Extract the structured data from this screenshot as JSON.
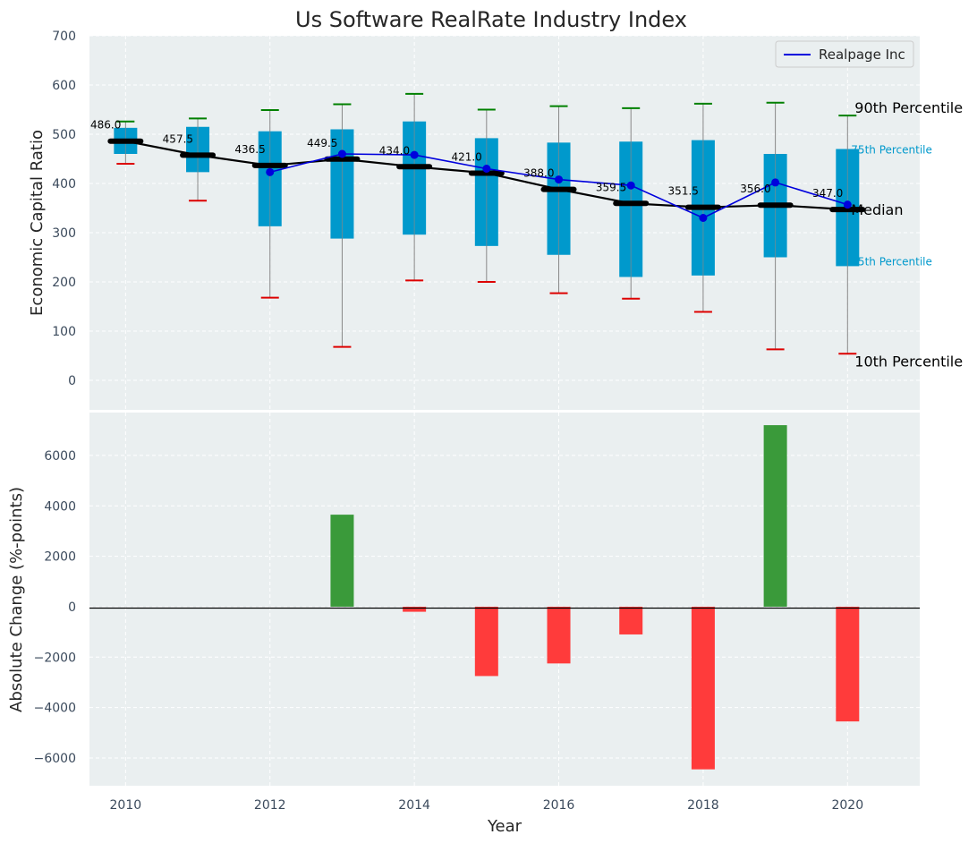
{
  "chart_data": [
    {
      "type": "box",
      "title": "Us Software RealRate Industry Index",
      "ylabel": "Economic Capital Ratio",
      "ylim": [
        -60,
        700
      ],
      "yticks": [
        0,
        100,
        200,
        300,
        400,
        500,
        600,
        700
      ],
      "grid": true,
      "legend_position": "top-right",
      "x": [
        2010,
        2011,
        2012,
        2013,
        2014,
        2015,
        2016,
        2017,
        2018,
        2019,
        2020
      ],
      "p10": [
        440,
        365,
        168,
        68,
        203,
        200,
        177,
        166,
        139,
        63,
        54
      ],
      "p25": [
        460,
        423,
        313,
        288,
        296,
        273,
        255,
        210,
        213,
        250,
        232
      ],
      "median": [
        486.0,
        457.5,
        436.5,
        449.5,
        434.0,
        421.0,
        388.0,
        359.5,
        351.5,
        356.0,
        347.0
      ],
      "median_labels": [
        "486.0",
        "457.5",
        "436.5",
        "449.5",
        "434.0",
        "421.0",
        "388.0",
        "359.5",
        "351.5",
        "356.0",
        "347.0"
      ],
      "p75": [
        513,
        515,
        506,
        510,
        526,
        492,
        483,
        485,
        488,
        460,
        470
      ],
      "p90": [
        526,
        532,
        549,
        561,
        582,
        550,
        557,
        553,
        562,
        564,
        538
      ],
      "series": [
        {
          "name": "Realpage Inc",
          "values": [
            null,
            null,
            423,
            460,
            458,
            430,
            408,
            396,
            330,
            402,
            357
          ],
          "color": "#0000dd"
        }
      ],
      "annotations": {
        "p90": "90th Percentile",
        "p75": "75th Percentile",
        "median": "Median",
        "p25": "25th Percentile",
        "p10": "10th Percentile"
      },
      "colors": {
        "box": "#0099cc",
        "median": "#000000",
        "p90_cap": "#008000",
        "p10_cap": "#dd0000",
        "whisker": "#888888"
      }
    },
    {
      "type": "bar",
      "ylabel": "Absolute Change (%-points)",
      "xlabel": "Year",
      "ylim": [
        -7100,
        7700
      ],
      "yticks": [
        -6000,
        -4000,
        -2000,
        0,
        2000,
        4000,
        6000
      ],
      "ytick_labels": [
        "−6000",
        "−4000",
        "−2000",
        "0",
        "2000",
        "4000",
        "6000"
      ],
      "xlim": [
        2009.5,
        2021
      ],
      "xticks": [
        2010,
        2012,
        2014,
        2016,
        2018,
        2020
      ],
      "x": [
        2010,
        2011,
        2012,
        2013,
        2014,
        2015,
        2016,
        2017,
        2018,
        2019,
        2020
      ],
      "values": [
        0,
        0,
        0,
        3650,
        -200,
        -2750,
        -2250,
        -1100,
        -6450,
        7200,
        -4550
      ],
      "colors": {
        "positive": "#3a9a3a",
        "negative": "#ff3b3b"
      }
    }
  ]
}
